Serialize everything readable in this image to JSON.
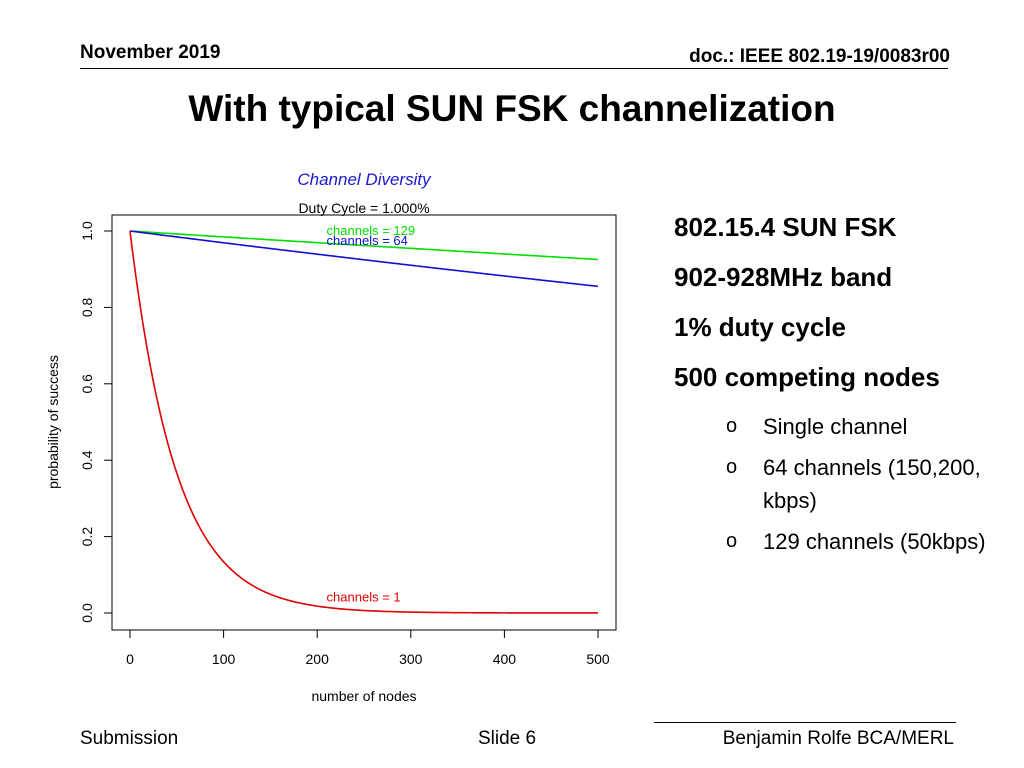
{
  "header": {
    "date": "November 2019",
    "doc": "doc.: IEEE 802.19-19/0083r00"
  },
  "slide": {
    "title": "With typical SUN FSK channelization"
  },
  "bullets": {
    "main": [
      "802.15.4 SUN FSK",
      "902-928MHz band",
      "1% duty cycle",
      "500 competing nodes"
    ],
    "sub": [
      "Single channel",
      "64 channels (150,200, kbps)",
      "129 channels (50kbps)"
    ],
    "marker": "o"
  },
  "footer": {
    "left": "Submission",
    "center": "Slide 6",
    "right": "Benjamin Rolfe BCA/MERL"
  },
  "chart_data": {
    "type": "line",
    "title": "Channel Diversity",
    "subtitle": "Duty Cycle = 1.000%",
    "xlabel": "number of nodes",
    "ylabel": "probability of success",
    "xlim": [
      0,
      500
    ],
    "ylim": [
      0,
      1
    ],
    "xticks": [
      0,
      100,
      200,
      300,
      400,
      500
    ],
    "yticks": [
      0.0,
      0.2,
      0.4,
      0.6,
      0.8,
      1.0
    ],
    "ytick_labels": [
      "0.0",
      "0.2",
      "0.4",
      "0.6",
      "0.8",
      "1.0"
    ],
    "grid": false,
    "series": [
      {
        "name": "channels = 129",
        "color": "#00e000",
        "label": "channels = 129",
        "decay_per_node": 0.000155,
        "label_at": [
          210,
          0.99
        ]
      },
      {
        "name": "channels = 64",
        "color": "#1010d0",
        "label": "channels = 64",
        "decay_per_node": 0.000313,
        "label_at": [
          210,
          0.964
        ]
      },
      {
        "name": "channels = 1",
        "color": "#e00000",
        "label": "channels =  1",
        "decay_per_node": 0.0201,
        "label_at": [
          210,
          0.03
        ]
      }
    ],
    "title_color": "#1a1acc"
  }
}
